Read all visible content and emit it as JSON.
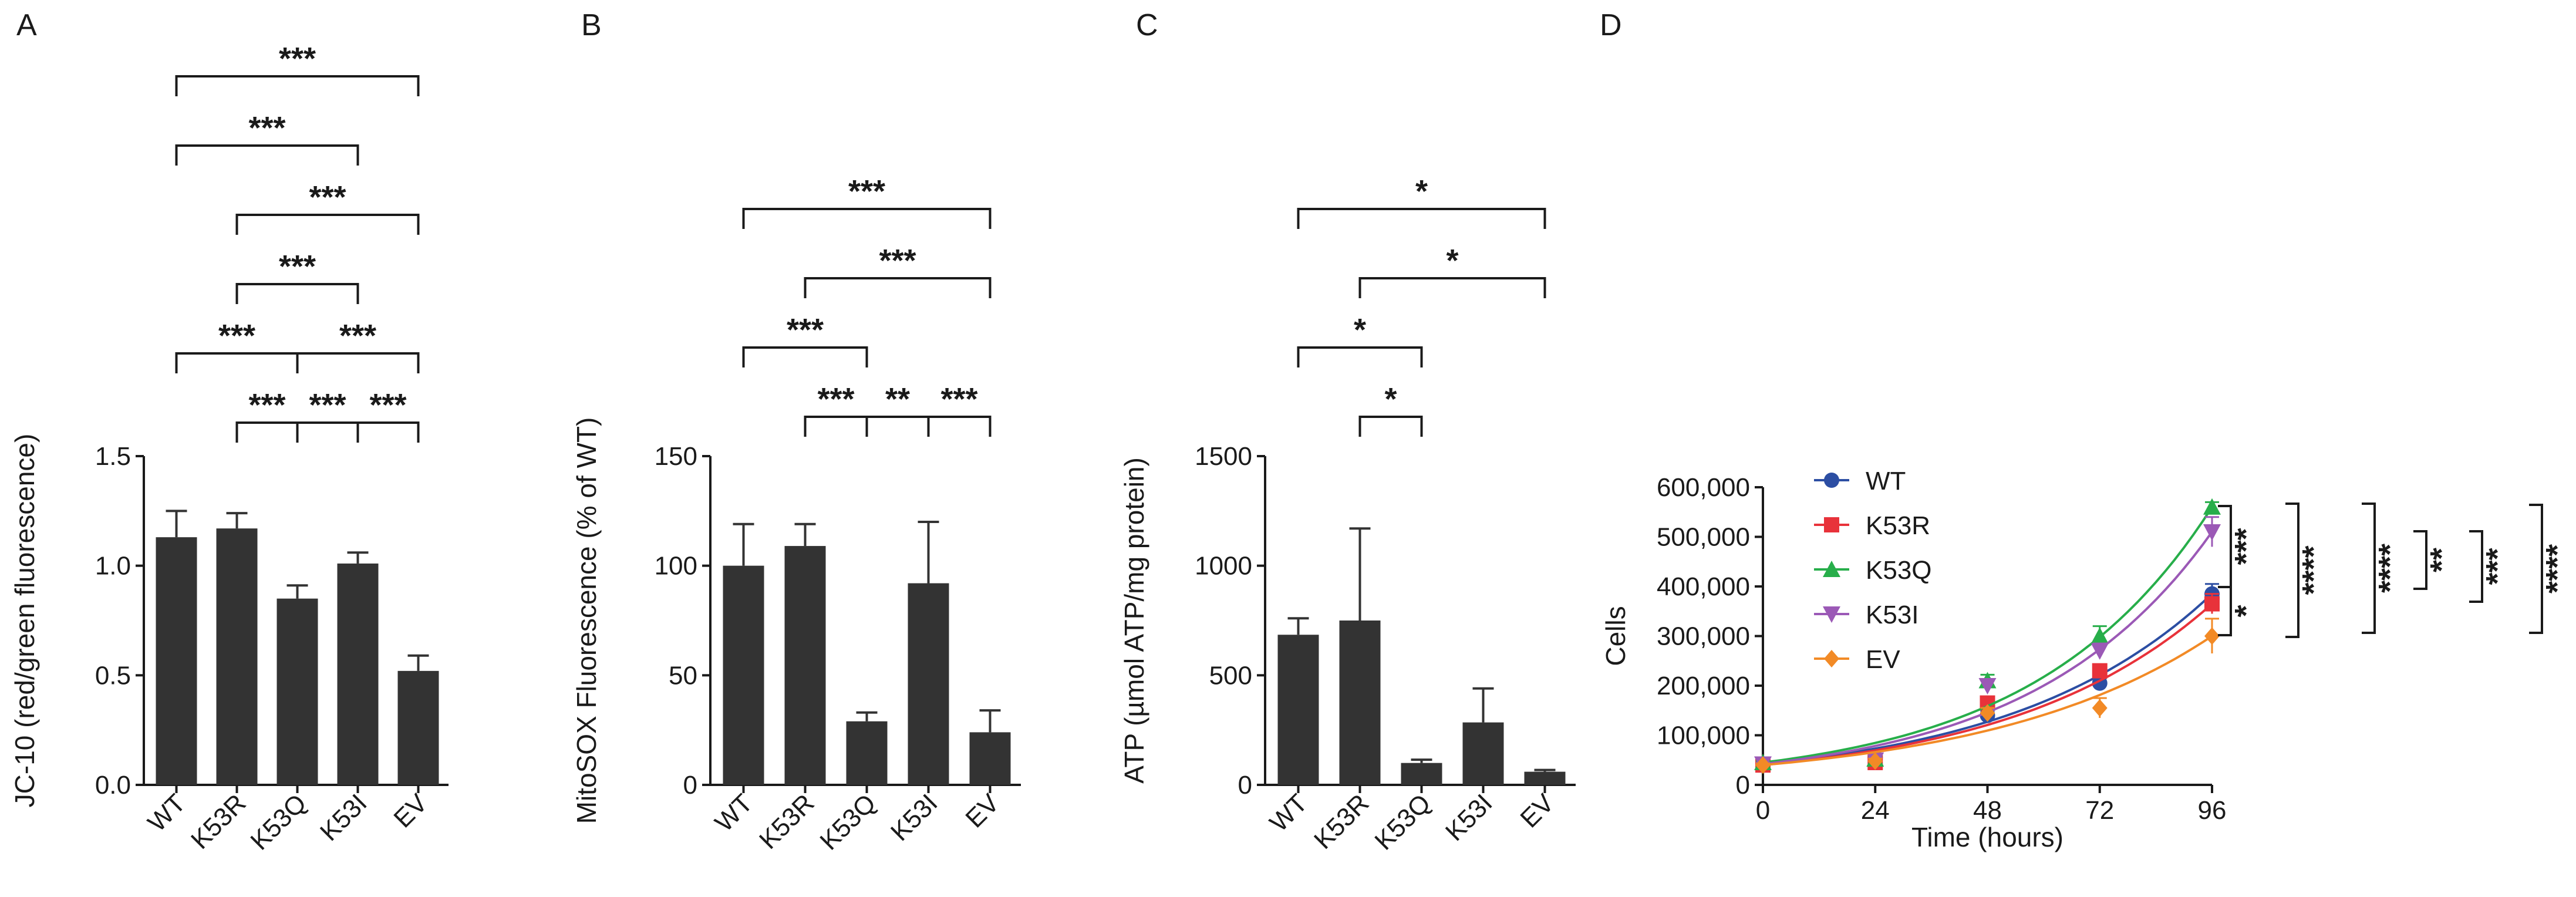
{
  "figure": {
    "colors": {
      "bar": "#333333",
      "axis": "#1a1a1a",
      "WT": "#2c4ea3",
      "K53R": "#e8323a",
      "K53Q": "#27ae4a",
      "K53I": "#9b59b6",
      "EV": "#f28a26"
    }
  },
  "chart_data": [
    {
      "panel": "A",
      "type": "bar",
      "categories": [
        "WT",
        "K53R",
        "K53Q",
        "K53I",
        "EV"
      ],
      "values": [
        1.13,
        1.17,
        0.85,
        1.01,
        0.52
      ],
      "errors": [
        0.12,
        0.07,
        0.06,
        0.05,
        0.07
      ],
      "ylabel": "JC-10 (red/green fluorescence)",
      "ylim": [
        0,
        1.5
      ],
      "yticks": [
        0,
        0.5,
        1.0,
        1.5
      ],
      "ytick_labels": [
        "0.0",
        "0.5",
        "1.0",
        "1.5"
      ],
      "significance": [
        {
          "from": 0,
          "to": 4,
          "label": "***"
        },
        {
          "from": 1,
          "to": 4,
          "label": "***"
        },
        {
          "from": 0,
          "to": 3,
          "label": "***"
        },
        {
          "from": 2,
          "to": 4,
          "label": "***"
        },
        {
          "from": 1,
          "to": 3,
          "label": "***"
        },
        {
          "from": 0,
          "to": 2,
          "label": "***"
        },
        {
          "from": 2,
          "to": 3,
          "label": "***"
        },
        {
          "from": 1,
          "to": 2,
          "label": "***"
        },
        {
          "from": 3,
          "to": 4,
          "label": "***"
        }
      ]
    },
    {
      "panel": "B",
      "type": "bar",
      "categories": [
        "WT",
        "K53R",
        "K53Q",
        "K53I",
        "EV"
      ],
      "values": [
        100,
        109,
        29,
        92,
        24
      ],
      "errors": [
        19,
        10,
        4,
        28,
        10
      ],
      "ylabel": "MitoSOX Fluorescence (% of WT)",
      "ylim": [
        0,
        150
      ],
      "yticks": [
        0,
        50,
        100,
        150
      ],
      "ytick_labels": [
        "0",
        "50",
        "100",
        "150"
      ],
      "significance": [
        {
          "from": 0,
          "to": 4,
          "label": "***"
        },
        {
          "from": 1,
          "to": 4,
          "label": "***"
        },
        {
          "from": 0,
          "to": 2,
          "label": "***"
        },
        {
          "from": 2,
          "to": 3,
          "label": "**"
        },
        {
          "from": 1,
          "to": 2,
          "label": "***"
        },
        {
          "from": 3,
          "to": 4,
          "label": "***"
        }
      ]
    },
    {
      "panel": "C",
      "type": "bar",
      "categories": [
        "WT",
        "K53R",
        "K53Q",
        "K53I",
        "EV"
      ],
      "values": [
        685,
        750,
        100,
        285,
        60
      ],
      "errors": [
        75,
        420,
        15,
        155,
        8
      ],
      "ylabel": "ATP (µmol ATP/mg protein)",
      "ylim": [
        0,
        1500
      ],
      "yticks": [
        0,
        500,
        1000,
        1500
      ],
      "ytick_labels": [
        "0",
        "500",
        "1000",
        "1500"
      ],
      "significance": [
        {
          "from": 0,
          "to": 4,
          "label": "*"
        },
        {
          "from": 1,
          "to": 4,
          "label": "*"
        },
        {
          "from": 0,
          "to": 2,
          "label": "*"
        },
        {
          "from": 1,
          "to": 2,
          "label": "*"
        }
      ]
    },
    {
      "panel": "D",
      "type": "scatter",
      "x": [
        0,
        24,
        48,
        72,
        96
      ],
      "xlabel": "Time (hours)",
      "ylabel": "Cells",
      "xlim": [
        0,
        96
      ],
      "ylim": [
        0,
        600000
      ],
      "xticks": [
        0,
        24,
        48,
        72,
        96
      ],
      "yticks": [
        0,
        100000,
        200000,
        300000,
        400000,
        500000,
        600000
      ],
      "ytick_labels": [
        "0",
        "100,000",
        "200,000",
        "300,000",
        "400,000",
        "500,000",
        "600,000"
      ],
      "legend_position": "top-left",
      "series": [
        {
          "name": "WT",
          "values": [
            42000,
            55000,
            140000,
            205000,
            385000
          ],
          "errors": [
            3000,
            5000,
            8000,
            10000,
            20000
          ],
          "marker": "circle"
        },
        {
          "name": "K53R",
          "values": [
            40000,
            45000,
            165000,
            230000,
            365000
          ],
          "errors": [
            3000,
            5000,
            10000,
            12000,
            20000
          ],
          "marker": "square"
        },
        {
          "name": "K53Q",
          "values": [
            45000,
            52000,
            210000,
            300000,
            560000
          ],
          "errors": [
            3000,
            5000,
            12000,
            20000,
            10000
          ],
          "marker": "triangle-up"
        },
        {
          "name": "K53I",
          "values": [
            42000,
            50000,
            200000,
            270000,
            510000
          ],
          "errors": [
            3000,
            5000,
            10000,
            15000,
            30000
          ],
          "marker": "triangle-down"
        },
        {
          "name": "EV",
          "values": [
            40000,
            48000,
            145000,
            155000,
            300000
          ],
          "errors": [
            3000,
            5000,
            10000,
            20000,
            35000
          ],
          "marker": "diamond"
        }
      ],
      "significance": [
        {
          "label": "***"
        },
        {
          "label": "*"
        },
        {
          "label": "****"
        },
        {
          "label": "****"
        },
        {
          "label": "**"
        },
        {
          "label": "***"
        },
        {
          "label": "****"
        }
      ]
    }
  ]
}
